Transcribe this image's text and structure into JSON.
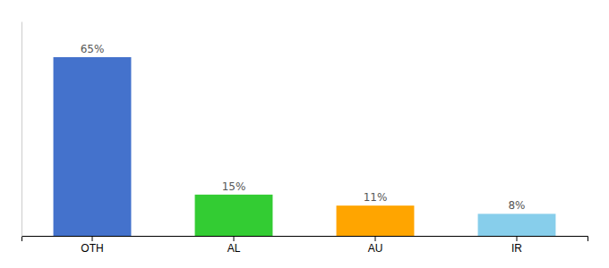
{
  "chart_data": {
    "type": "bar",
    "categories": [
      "OTH",
      "AL",
      "AU",
      "IR"
    ],
    "values": [
      65,
      15,
      11,
      8
    ],
    "value_labels": [
      "65%",
      "15%",
      "11%",
      "8%"
    ],
    "colors": [
      "#4472CC",
      "#33CC33",
      "#FFA500",
      "#87CEEB"
    ],
    "ylim": [
      0,
      78
    ],
    "data_labels": true,
    "tick_labels": "x",
    "grid": false
  }
}
